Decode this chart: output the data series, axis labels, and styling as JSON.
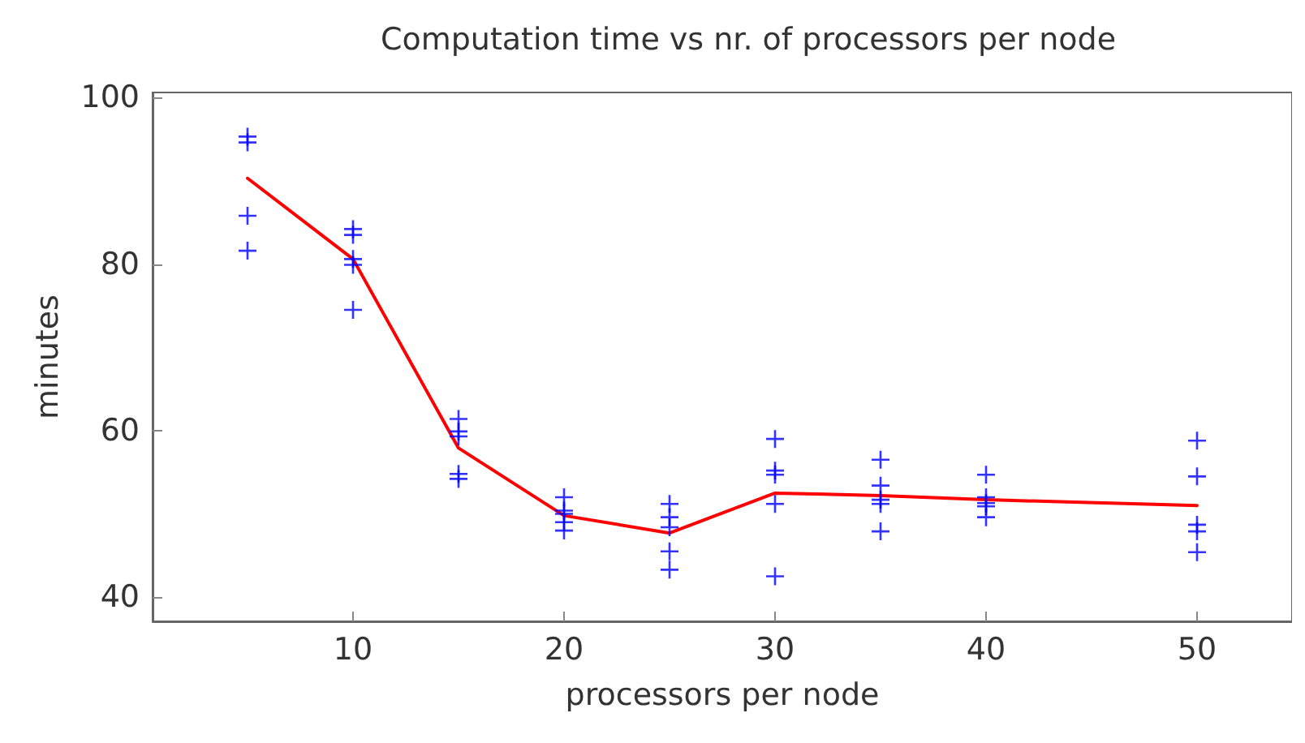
{
  "chart_data": {
    "type": "scatter",
    "title": "Computation time vs nr. of processors per node",
    "xlabel": "processors per node",
    "ylabel": "minutes",
    "xlim": [
      0.5,
      54.5
    ],
    "ylim": [
      37.1,
      100.6
    ],
    "xticks": [
      10,
      20,
      30,
      40,
      50
    ],
    "yticks": [
      40,
      60,
      80,
      100
    ],
    "grid": false,
    "series": [
      {
        "marker": "cross",
        "color": "#0000ff",
        "x": [
          5,
          5,
          5,
          5,
          10,
          10,
          10,
          10,
          10,
          15,
          15,
          15,
          15,
          15,
          20,
          20,
          20,
          20,
          20,
          25,
          25,
          25,
          25,
          25,
          30,
          30,
          30,
          30,
          30,
          35,
          35,
          35,
          35,
          35,
          40,
          40,
          40,
          40,
          40,
          50,
          50,
          50,
          50,
          50
        ],
        "values": [
          95.3,
          94.6,
          85.8,
          81.6,
          84.2,
          83.5,
          80.6,
          79.9,
          74.5,
          61.4,
          59.9,
          59.3,
          54.8,
          54.2,
          52.0,
          50.4,
          50.0,
          49.0,
          48.0,
          51.2,
          49.6,
          48.4,
          45.5,
          43.3,
          59.0,
          55.2,
          54.7,
          51.2,
          42.5,
          56.5,
          53.4,
          51.7,
          51.2,
          47.9,
          54.7,
          52.0,
          51.3,
          50.9,
          49.6,
          58.8,
          54.5,
          48.7,
          47.9,
          45.4
        ]
      },
      {
        "type": "line",
        "marker": "none",
        "line_style": "solid",
        "color": "#ff0000",
        "x": [
          5,
          10,
          15,
          20,
          25,
          30,
          35,
          40,
          50
        ],
        "values": [
          90.3,
          80.6,
          57.9,
          49.8,
          47.7,
          52.5,
          52.2,
          51.7,
          51.0
        ]
      }
    ]
  }
}
